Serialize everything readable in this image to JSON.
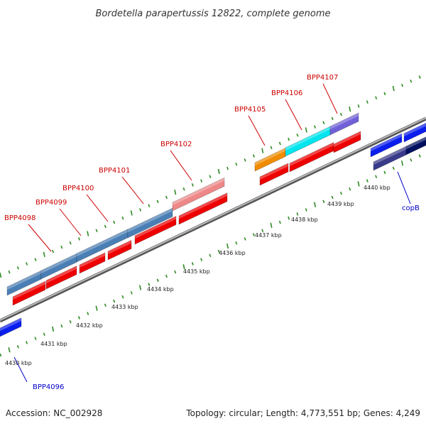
{
  "title": "Bordetella parapertussis 12822, complete genome",
  "footer": {
    "accession": "Accession: NC_002928",
    "summary": "Topology: circular; Length: 4,773,551 bp; Genes: 4,249"
  },
  "colors": {
    "backbone": "#888888",
    "tick": "#2e8b22",
    "label_red": "#cc0000",
    "label_blue": "#0000cc",
    "cds_red": "#ee0000",
    "steel": "#4a7fb5",
    "pink": "#ee8888",
    "orange": "#f08c00",
    "cyan": "#00e5ee",
    "slate": "#7060d8",
    "blue": "#0a1eee",
    "darkslate": "#3a3a8a",
    "navy": "#001060"
  },
  "ruler_labels": [
    "4430 kbp",
    "4431 kbp",
    "4432 kbp",
    "4433 kbp",
    "4434 kbp",
    "4435 kbp",
    "4436 kbp",
    "4437 kbp",
    "4438 kbp",
    "4439 kbp",
    "4440 kbp"
  ],
  "gene_labels": [
    {
      "text": "BPP4098",
      "color": "red"
    },
    {
      "text": "BPP4099",
      "color": "red"
    },
    {
      "text": "BPP4100",
      "color": "red"
    },
    {
      "text": "BPP4101",
      "color": "red"
    },
    {
      "text": "BPP4102",
      "color": "red"
    },
    {
      "text": "BPP4105",
      "color": "red"
    },
    {
      "text": "BPP4106",
      "color": "red"
    },
    {
      "text": "BPP4107",
      "color": "red"
    },
    {
      "text": "BPP4096",
      "color": "blue"
    },
    {
      "text": "copB",
      "color": "blue"
    }
  ]
}
